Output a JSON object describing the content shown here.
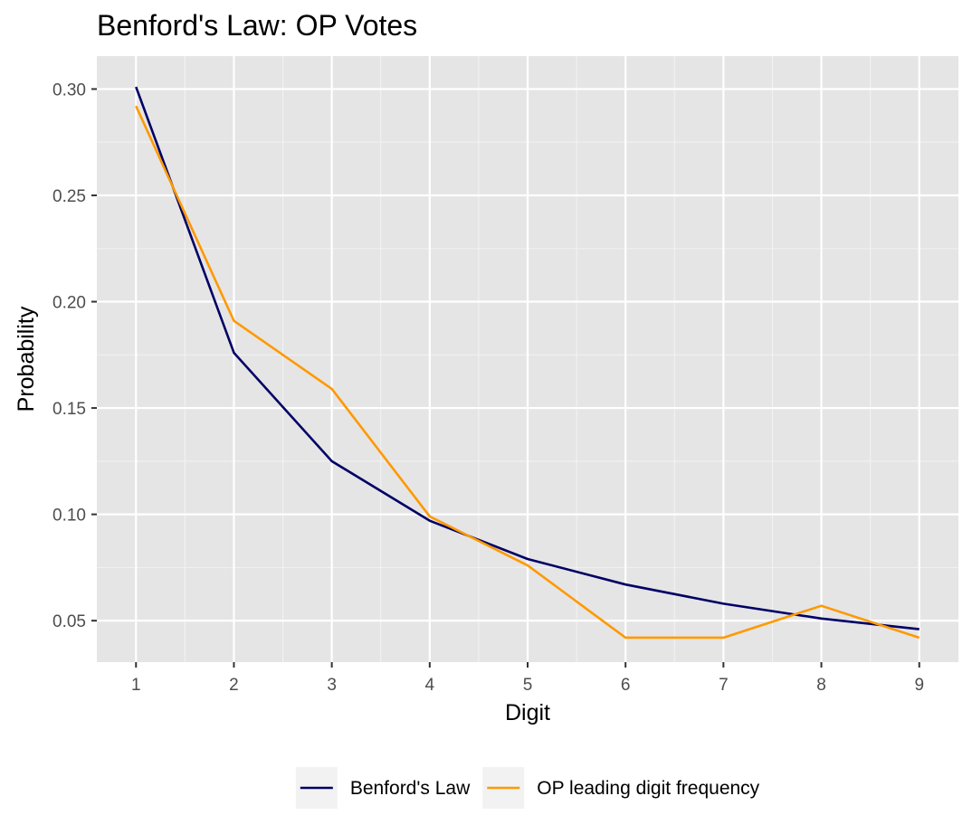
{
  "chart_data": {
    "type": "line",
    "title": "Benford's Law: OP  Votes",
    "xlabel": "Digit",
    "ylabel": "Probability",
    "x": [
      1,
      2,
      3,
      4,
      5,
      6,
      7,
      8,
      9
    ],
    "x_ticks": [
      "1",
      "2",
      "3",
      "4",
      "5",
      "6",
      "7",
      "8",
      "9"
    ],
    "y_ticks": [
      {
        "value": 0.05,
        "label": "0.05"
      },
      {
        "value": 0.1,
        "label": "0.10"
      },
      {
        "value": 0.15,
        "label": "0.15"
      },
      {
        "value": 0.2,
        "label": "0.20"
      },
      {
        "value": 0.25,
        "label": "0.25"
      },
      {
        "value": 0.3,
        "label": "0.30"
      }
    ],
    "xlim": [
      0.6,
      9.4
    ],
    "ylim": [
      0.0305,
      0.3155
    ],
    "grid": true,
    "legend_position": "bottom",
    "series": [
      {
        "name": "Benford's Law",
        "color": "#000066",
        "values": [
          0.301,
          0.176,
          0.125,
          0.097,
          0.079,
          0.067,
          0.058,
          0.051,
          0.046
        ]
      },
      {
        "name": "OP  leading digit frequency",
        "color": "#ff9900",
        "values": [
          0.292,
          0.191,
          0.159,
          0.099,
          0.076,
          0.042,
          0.042,
          0.057,
          0.042
        ]
      }
    ]
  }
}
